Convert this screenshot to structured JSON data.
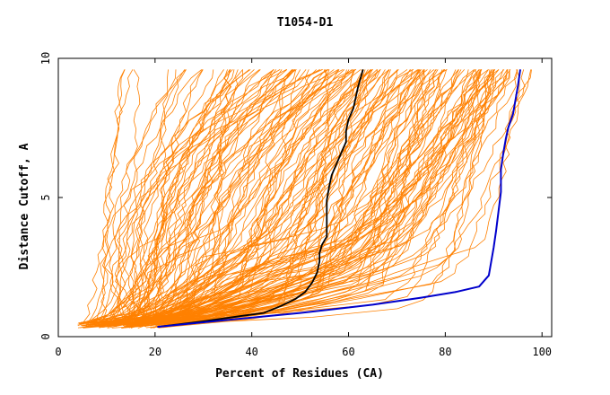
{
  "chart_data": {
    "type": "line",
    "title": "T1054-D1",
    "xlabel": "Percent of Residues (CA)",
    "ylabel": "Distance Cutoff, A",
    "xlim": [
      0,
      102
    ],
    "ylim": [
      0,
      10
    ],
    "x_ticks": [
      0,
      20,
      40,
      60,
      80,
      100
    ],
    "y_ticks": [
      0,
      5,
      10
    ],
    "grid": false,
    "legend": "none",
    "colors": {
      "background_models": "#ff8000",
      "highlight_black": "#000000",
      "highlight_blue": "#0000cc"
    },
    "series": [
      {
        "color": "#000000",
        "points": [
          [
            20.5,
            0.35
          ],
          [
            30,
            0.55
          ],
          [
            38,
            0.75
          ],
          [
            42.5,
            0.85
          ],
          [
            46,
            1.1
          ],
          [
            49,
            1.35
          ],
          [
            51,
            1.6
          ],
          [
            52.5,
            1.95
          ],
          [
            53.5,
            2.3
          ],
          [
            54,
            2.7
          ],
          [
            54,
            3.0
          ],
          [
            54.5,
            3.3
          ],
          [
            55.5,
            3.6
          ],
          [
            55.5,
            4.0
          ],
          [
            55.5,
            4.4
          ],
          [
            55.5,
            4.9
          ],
          [
            56,
            5.4
          ],
          [
            56.5,
            5.8
          ],
          [
            57.5,
            6.2
          ],
          [
            58.5,
            6.6
          ],
          [
            59.5,
            7.0
          ],
          [
            59.5,
            7.4
          ],
          [
            60,
            7.8
          ],
          [
            61,
            8.2
          ],
          [
            61.5,
            8.6
          ],
          [
            62,
            9.0
          ],
          [
            62.5,
            9.3
          ],
          [
            63,
            9.6
          ]
        ]
      },
      {
        "color": "#0000cc",
        "points": [
          [
            20.5,
            0.35
          ],
          [
            35,
            0.6
          ],
          [
            50,
            0.85
          ],
          [
            65,
            1.15
          ],
          [
            75,
            1.4
          ],
          [
            82,
            1.6
          ],
          [
            87,
            1.8
          ],
          [
            89,
            2.2
          ],
          [
            89.5,
            2.7
          ],
          [
            90,
            3.2
          ],
          [
            90.5,
            3.8
          ],
          [
            91,
            4.5
          ],
          [
            91.5,
            5.2
          ],
          [
            91.5,
            6.0
          ],
          [
            92,
            6.6
          ],
          [
            92.5,
            7.1
          ],
          [
            93,
            7.5
          ],
          [
            94,
            8.0
          ],
          [
            94.5,
            8.5
          ],
          [
            95,
            9.0
          ],
          [
            95.5,
            9.6
          ]
        ]
      }
    ]
  }
}
